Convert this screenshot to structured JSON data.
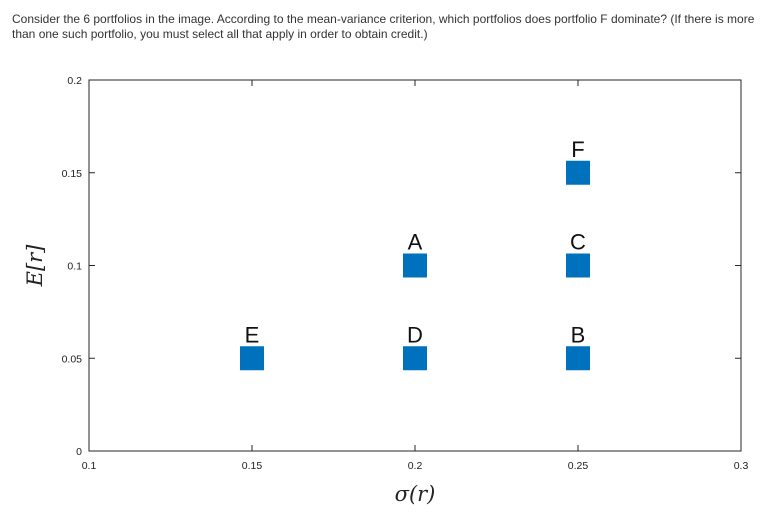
{
  "question": {
    "text": "Consider the 6 portfolios in the image. According to the mean-variance criterion, which portfolios does portfolio F dominate? (If there is more than one such portfolio, you must select all that apply in order to obtain credit.)"
  },
  "chart_data": {
    "type": "scatter",
    "xlabel": "σ(r)",
    "ylabel": "E[r]",
    "xlim": [
      0.1,
      0.3
    ],
    "ylim": [
      0,
      0.2
    ],
    "xticks": [
      "0.1",
      "0.15",
      "0.2",
      "0.25",
      "0.3"
    ],
    "yticks": [
      "0",
      "0.05",
      "0.1",
      "0.15",
      "0.2"
    ],
    "marker": "square",
    "marker_color": "#0072BD",
    "grid": false,
    "points": [
      {
        "label": "A",
        "x": 0.2,
        "y": 0.1
      },
      {
        "label": "B",
        "x": 0.25,
        "y": 0.05
      },
      {
        "label": "C",
        "x": 0.25,
        "y": 0.1
      },
      {
        "label": "D",
        "x": 0.2,
        "y": 0.05
      },
      {
        "label": "E",
        "x": 0.15,
        "y": 0.05
      },
      {
        "label": "F",
        "x": 0.25,
        "y": 0.15
      }
    ]
  }
}
